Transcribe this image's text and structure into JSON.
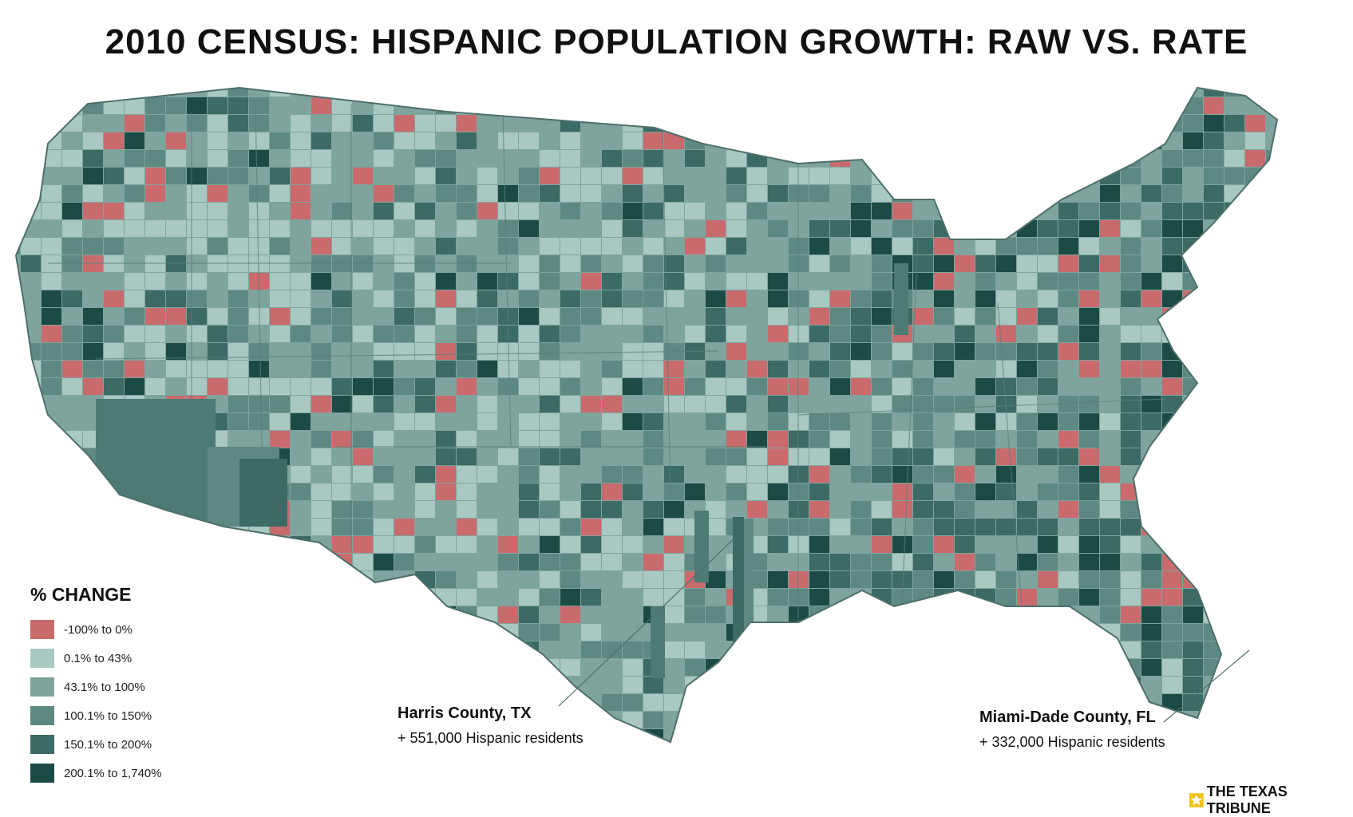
{
  "title": "2010 CENSUS: HISPANIC POPULATION GROWTH: RAW VS. RATE",
  "legend": {
    "title": "% CHANGE",
    "items": [
      {
        "label": "-100% to 0%",
        "color": "#c96b6d"
      },
      {
        "label": "0.1% to 43%",
        "color": "#a9c8c2"
      },
      {
        "label": "43.1% to 100%",
        "color": "#7fa49e"
      },
      {
        "label": "100.1% to 150%",
        "color": "#5e8882"
      },
      {
        "label": "150.1% to 200%",
        "color": "#3c6a64"
      },
      {
        "label": "200.1% to 1,740%",
        "color": "#1c4a45"
      }
    ]
  },
  "callouts": [
    {
      "name": "Harris County, TX",
      "detail": "+ 551,000 Hispanic residents",
      "value": 551000
    },
    {
      "name": "Miami-Dade County, FL",
      "detail": "+ 332,000 Hispanic residents",
      "value": 332000
    }
  ],
  "credit": "THE TEXAS TRIBUNE",
  "colors": {
    "brand_star": "#f2c417",
    "map_base": "#7fa49e",
    "map_dark": "#3c6a64"
  }
}
